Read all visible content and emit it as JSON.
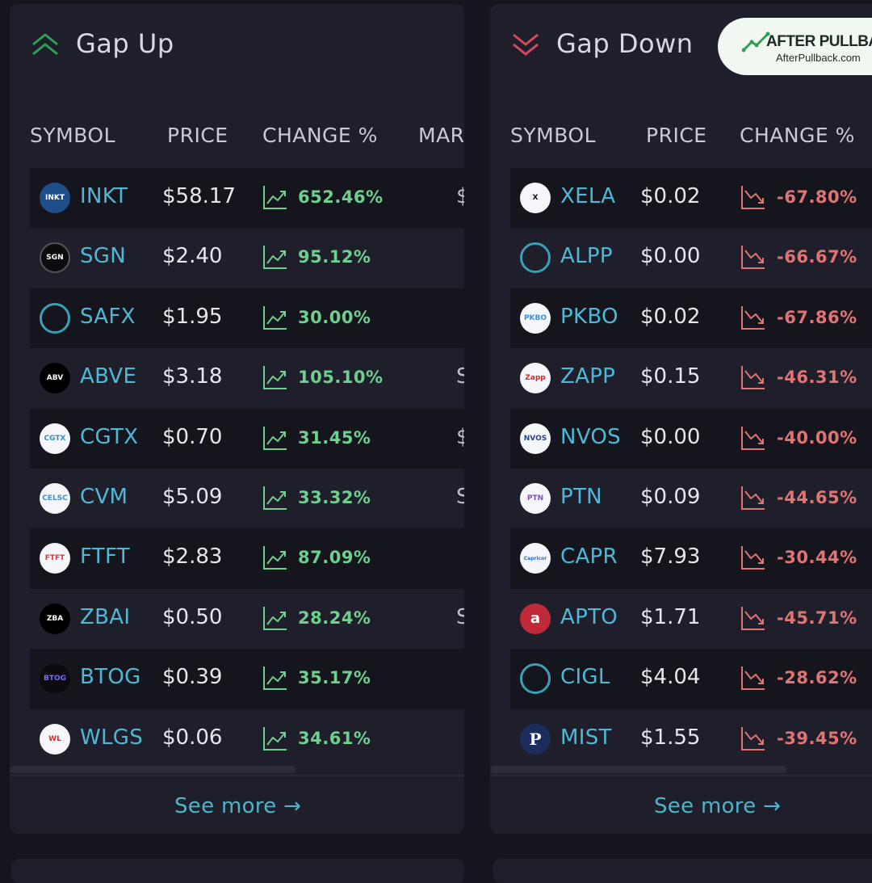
{
  "brand": {
    "name": "AFTER PULLBACK",
    "url": "AfterPullback.com",
    "accent": "#2f9e56"
  },
  "colors": {
    "up": "#6fcf8f",
    "down": "#e07474",
    "symbol": "#4fb8d6",
    "link": "#4fb3c9"
  },
  "gap_up": {
    "title": "Gap Up",
    "icon": "double-chevron-up-icon",
    "columns": {
      "symbol": "SYMBOL",
      "price": "PRICE",
      "change": "CHANGE %",
      "market": "MAR"
    },
    "rows": [
      {
        "symbol": "INKT",
        "price": "$58.17",
        "change": "652.46%",
        "mcap": "$",
        "logo": "INKT"
      },
      {
        "symbol": "SGN",
        "price": "$2.40",
        "change": "95.12%",
        "mcap": "",
        "logo": "SGN"
      },
      {
        "symbol": "SAFX",
        "price": "$1.95",
        "change": "30.00%",
        "mcap": "",
        "logo": ""
      },
      {
        "symbol": "ABVE",
        "price": "$3.18",
        "change": "105.10%",
        "mcap": "S",
        "logo": "ABV"
      },
      {
        "symbol": "CGTX",
        "price": "$0.70",
        "change": "31.45%",
        "mcap": "$",
        "logo": "CGTX"
      },
      {
        "symbol": "CVM",
        "price": "$5.09",
        "change": "33.32%",
        "mcap": "S",
        "logo": "CELSC"
      },
      {
        "symbol": "FTFT",
        "price": "$2.83",
        "change": "87.09%",
        "mcap": "",
        "logo": "FTFT"
      },
      {
        "symbol": "ZBAI",
        "price": "$0.50",
        "change": "28.24%",
        "mcap": "S",
        "logo": "ZBA"
      },
      {
        "symbol": "BTOG",
        "price": "$0.39",
        "change": "35.17%",
        "mcap": "",
        "logo": "BTOG"
      },
      {
        "symbol": "WLGS",
        "price": "$0.06",
        "change": "34.61%",
        "mcap": "",
        "logo": "WL"
      }
    ],
    "see_more": "See more →"
  },
  "gap_down": {
    "title": "Gap Down",
    "icon": "double-chevron-down-icon",
    "columns": {
      "symbol": "SYMBOL",
      "price": "PRICE",
      "change": "CHANGE %"
    },
    "rows": [
      {
        "symbol": "XELA",
        "price": "$0.02",
        "change": "-67.80%",
        "logo": "X"
      },
      {
        "symbol": "ALPP",
        "price": "$0.00",
        "change": "-66.67%",
        "logo": ""
      },
      {
        "symbol": "PKBO",
        "price": "$0.02",
        "change": "-67.86%",
        "logo": "PKBO"
      },
      {
        "symbol": "ZAPP",
        "price": "$0.15",
        "change": "-46.31%",
        "logo": "Zapp"
      },
      {
        "symbol": "NVOS",
        "price": "$0.00",
        "change": "-40.00%",
        "logo": "NVOS"
      },
      {
        "symbol": "PTN",
        "price": "$0.09",
        "change": "-44.65%",
        "logo": "PTN"
      },
      {
        "symbol": "CAPR",
        "price": "$7.93",
        "change": "-30.44%",
        "logo": "Capricor"
      },
      {
        "symbol": "APTO",
        "price": "$1.71",
        "change": "-45.71%",
        "logo": "a"
      },
      {
        "symbol": "CIGL",
        "price": "$4.04",
        "change": "-28.62%",
        "logo": ""
      },
      {
        "symbol": "MIST",
        "price": "$1.55",
        "change": "-39.45%",
        "logo": "P"
      }
    ],
    "see_more": "See more →"
  }
}
